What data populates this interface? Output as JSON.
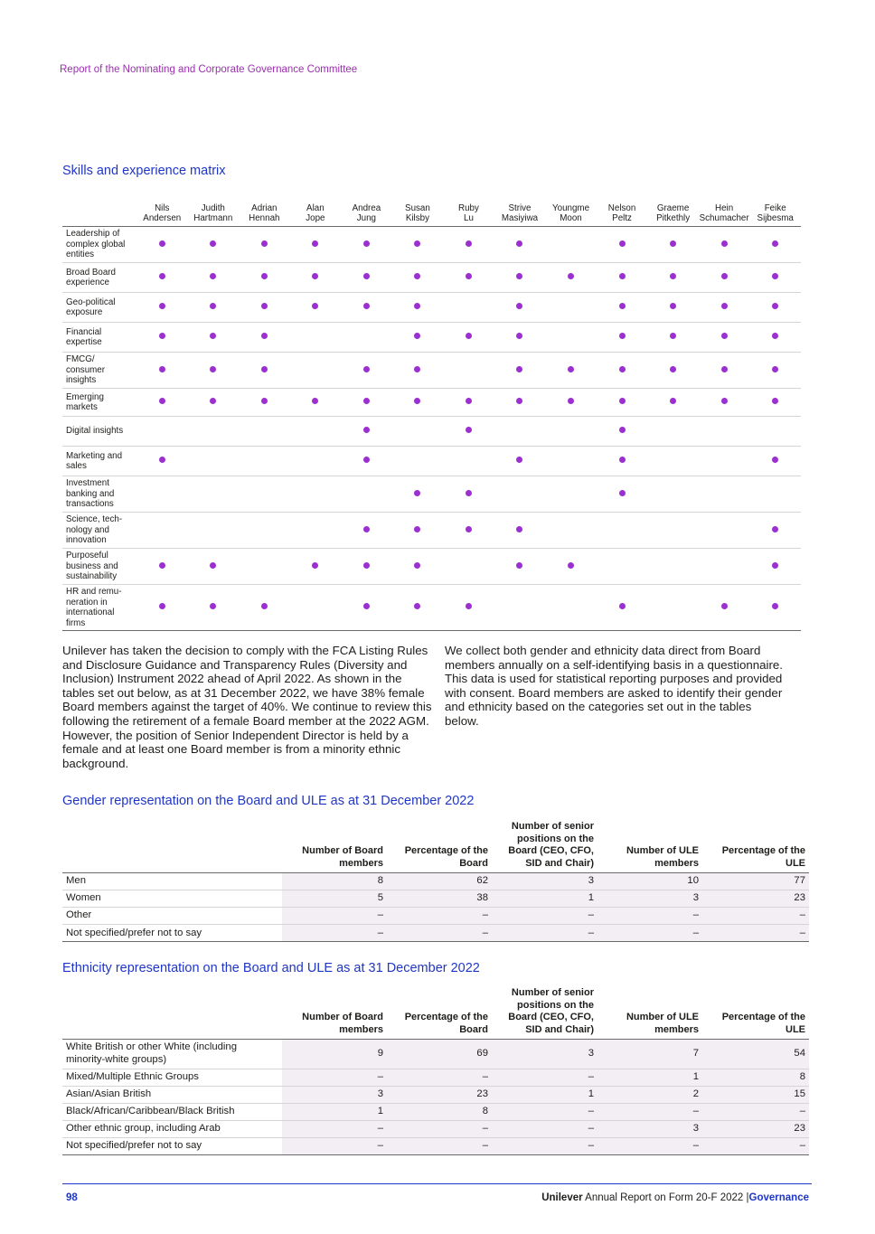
{
  "header": {
    "title": "Report of the Nominating and Corporate Governance Committee"
  },
  "skills_matrix": {
    "title": "Skills and experience matrix",
    "members": [
      [
        "Nils",
        "Andersen"
      ],
      [
        "Judith",
        "Hartmann"
      ],
      [
        "Adrian",
        "Hennah"
      ],
      [
        "Alan",
        "Jope"
      ],
      [
        "Andrea",
        "Jung"
      ],
      [
        "Susan",
        "Kilsby"
      ],
      [
        "Ruby",
        "Lu"
      ],
      [
        "Strive",
        "Masiyiwa"
      ],
      [
        "Youngme",
        "Moon"
      ],
      [
        "Nelson",
        "Peltz"
      ],
      [
        "Graeme",
        "Pitkethly"
      ],
      [
        "Hein",
        "Schumacher"
      ],
      [
        "Feike",
        "Sijbesma"
      ]
    ],
    "rows": [
      {
        "skill": "Leadership of complex global entities",
        "marks": [
          1,
          1,
          1,
          1,
          1,
          1,
          1,
          1,
          0,
          1,
          1,
          1,
          1
        ]
      },
      {
        "skill": "Broad Board experience",
        "marks": [
          1,
          1,
          1,
          1,
          1,
          1,
          1,
          1,
          1,
          1,
          1,
          1,
          1
        ]
      },
      {
        "skill": "Geo-political exposure",
        "marks": [
          1,
          1,
          1,
          1,
          1,
          1,
          0,
          1,
          0,
          1,
          1,
          1,
          1
        ]
      },
      {
        "skill": "Financial expertise",
        "marks": [
          1,
          1,
          1,
          0,
          0,
          1,
          1,
          1,
          0,
          1,
          1,
          1,
          1
        ]
      },
      {
        "skill": "FMCG/ consumer insights",
        "marks": [
          1,
          1,
          1,
          0,
          1,
          1,
          0,
          1,
          1,
          1,
          1,
          1,
          1
        ]
      },
      {
        "skill": "Emerging markets",
        "marks": [
          1,
          1,
          1,
          1,
          1,
          1,
          1,
          1,
          1,
          1,
          1,
          1,
          1
        ]
      },
      {
        "skill": "Digital insights",
        "marks": [
          0,
          0,
          0,
          0,
          1,
          0,
          1,
          0,
          0,
          1,
          0,
          0,
          0
        ]
      },
      {
        "skill": "Marketing and sales",
        "marks": [
          1,
          0,
          0,
          0,
          1,
          0,
          0,
          1,
          0,
          1,
          0,
          0,
          1
        ]
      },
      {
        "skill": "Investment banking and transactions",
        "marks": [
          0,
          0,
          0,
          0,
          0,
          1,
          1,
          0,
          0,
          1,
          0,
          0,
          0
        ]
      },
      {
        "skill": "Science, tech-nology and innovation",
        "marks": [
          0,
          0,
          0,
          0,
          1,
          1,
          1,
          1,
          0,
          0,
          0,
          0,
          1
        ]
      },
      {
        "skill": "Purposeful business and sustainability",
        "marks": [
          1,
          1,
          0,
          1,
          1,
          1,
          0,
          1,
          1,
          0,
          0,
          0,
          1
        ]
      },
      {
        "skill": "HR and remu-neration in international firms",
        "marks": [
          1,
          1,
          1,
          0,
          1,
          1,
          1,
          0,
          0,
          1,
          0,
          1,
          1
        ]
      }
    ]
  },
  "paragraphs": {
    "left": "Unilever has taken the decision to comply with the FCA Listing Rules and Disclosure Guidance and Transparency Rules (Diversity and Inclusion) Instrument 2022 ahead of April 2022. As shown in the tables set out below, as at 31 December 2022, we have 38% female Board members against the target of 40%. We continue to review this following the retirement of a female Board member at the 2022 AGM. However, the position of Senior Independent Director is held by a female and at least one Board member is from a minority ethnic background.",
    "right": "We collect both gender and ethnicity data direct from Board members annually on a self-identifying basis in a questionnaire. This data is used for statistical reporting purposes and provided with consent. Board members are asked to identify their gender and ethnicity based on the categories set out in the tables below."
  },
  "gender_table": {
    "title": "Gender representation on the Board and ULE as at 31 December 2022",
    "headers": [
      "Number of Board members",
      "Percentage of the Board",
      "Number of senior positions on the Board (CEO, CFO, SID and Chair)",
      "Number of ULE members",
      "Percentage of the ULE"
    ],
    "rows": [
      {
        "label": "Men",
        "values": [
          "8",
          "62",
          "3",
          "10",
          "77"
        ]
      },
      {
        "label": "Women",
        "values": [
          "5",
          "38",
          "1",
          "3",
          "23"
        ]
      },
      {
        "label": "Other",
        "values": [
          "–",
          "–",
          "–",
          "–",
          "–"
        ]
      },
      {
        "label": "Not specified/prefer not to say",
        "values": [
          "–",
          "–",
          "–",
          "–",
          "–"
        ]
      }
    ]
  },
  "ethnicity_table": {
    "title": "Ethnicity representation on the Board and ULE as at 31 December 2022",
    "headers": [
      "Number of Board members",
      "Percentage of the Board",
      "Number of senior positions on the Board (CEO, CFO, SID and Chair)",
      "Number of ULE members",
      "Percentage of the ULE"
    ],
    "rows": [
      {
        "label": "White British or other White (including minority-white groups)",
        "values": [
          "9",
          "69",
          "3",
          "7",
          "54"
        ]
      },
      {
        "label": "Mixed/Multiple Ethnic Groups",
        "values": [
          "–",
          "–",
          "–",
          "1",
          "8"
        ]
      },
      {
        "label": "Asian/Asian British",
        "values": [
          "3",
          "23",
          "1",
          "2",
          "15"
        ]
      },
      {
        "label": "Black/African/Caribbean/Black British",
        "values": [
          "1",
          "8",
          "–",
          "–",
          "–"
        ]
      },
      {
        "label": "Other ethnic group, including Arab",
        "values": [
          "–",
          "–",
          "–",
          "3",
          "23"
        ]
      },
      {
        "label": "Not specified/prefer not to say",
        "values": [
          "–",
          "–",
          "–",
          "–",
          "–"
        ]
      }
    ]
  },
  "footer": {
    "page_number": "98",
    "brand": "Unilever",
    "report": "Annual Report on Form 20-F 2022",
    "separator": "|",
    "section": "Governance"
  },
  "colors": {
    "accent_blue": "#1f36c7",
    "accent_purple": "#9b2fae",
    "dot_purple": "#9b2fcf",
    "shade": "#f2eef3"
  }
}
